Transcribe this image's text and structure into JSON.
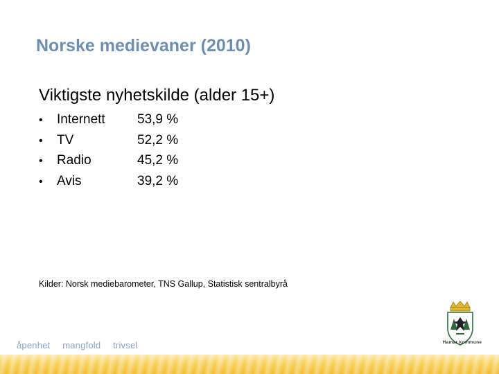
{
  "slide": {
    "title": "Norske medievaner (2010)",
    "subtitle": "Viktigste nyhetskilde (alder 15+)",
    "items": [
      {
        "label": "Internett",
        "value": "53,9 %"
      },
      {
        "label": "TV",
        "value": "52,2 %"
      },
      {
        "label": "Radio",
        "value": "45,2 %"
      },
      {
        "label": "Avis",
        "value": "39,2 %"
      }
    ],
    "bullet": "•",
    "source": "Kilder: Norsk mediebarometer, TNS Gallup, Statistisk sentralbyrå"
  },
  "footer": {
    "slogan": [
      "åpenhet",
      "mangfold",
      "trivsel"
    ],
    "logo_text": "Hamar kommune",
    "band_color": "#f3bc2c",
    "title_color": "#6f8fb0"
  }
}
